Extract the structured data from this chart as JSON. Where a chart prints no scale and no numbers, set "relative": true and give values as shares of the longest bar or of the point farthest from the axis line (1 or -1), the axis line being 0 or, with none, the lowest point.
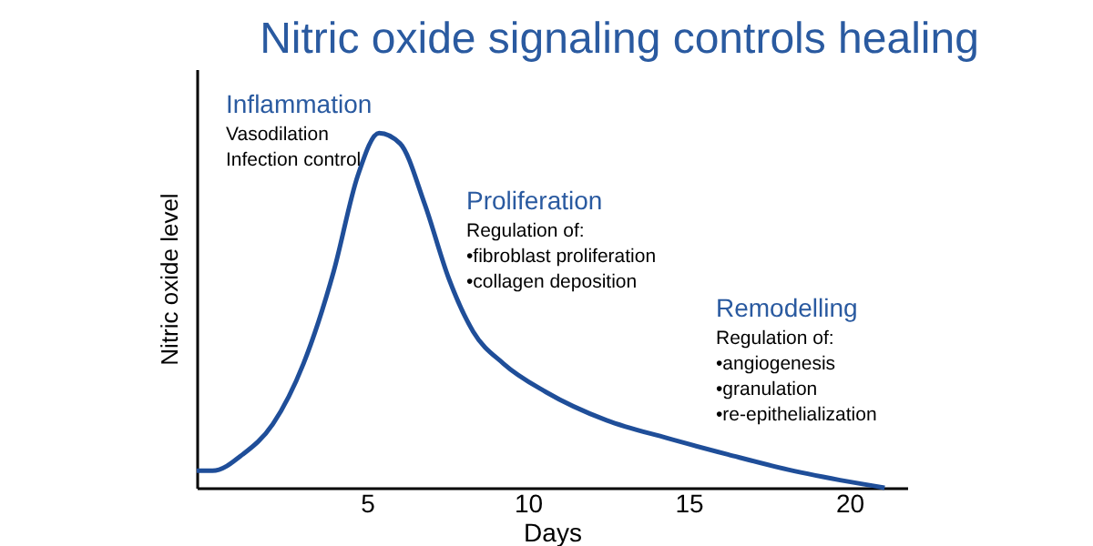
{
  "chart_data": {
    "type": "line",
    "title": "Nitric oxide signaling controls healing",
    "xlabel": "Days",
    "ylabel": "Nitric oxide level",
    "relative": true,
    "xlim": [
      -0.3,
      21.8
    ],
    "xticks": [
      5,
      10,
      15,
      20
    ],
    "grid": false,
    "x": [
      -0.3,
      0.19,
      1.13,
      2.07,
      3.02,
      3.96,
      4.71,
      5.37,
      6.03,
      6.79,
      7.54,
      8.3,
      9.24,
      10.56,
      12.45,
      14.33,
      16.22,
      18.1,
      20.0,
      21.1
    ],
    "series": [
      {
        "color": "#1f4e99",
        "values": [
          0.048,
          0.048,
          0.094,
          0.18,
          0.35,
          0.61,
          0.88,
          1.0,
          0.97,
          0.8,
          0.59,
          0.44,
          0.35,
          0.27,
          0.19,
          0.14,
          0.094,
          0.051,
          0.017,
          0.0
        ]
      }
    ],
    "annotations": [
      "Inflammation",
      "Vasodilation\nInfection control",
      "Proliferation",
      "Regulation of:\n•fibroblast  proliferation\n•collagen  deposition",
      "Remodelling",
      "Regulation of:\n•angiogenesis\n•granulation\n•re-epithelialization"
    ]
  }
}
